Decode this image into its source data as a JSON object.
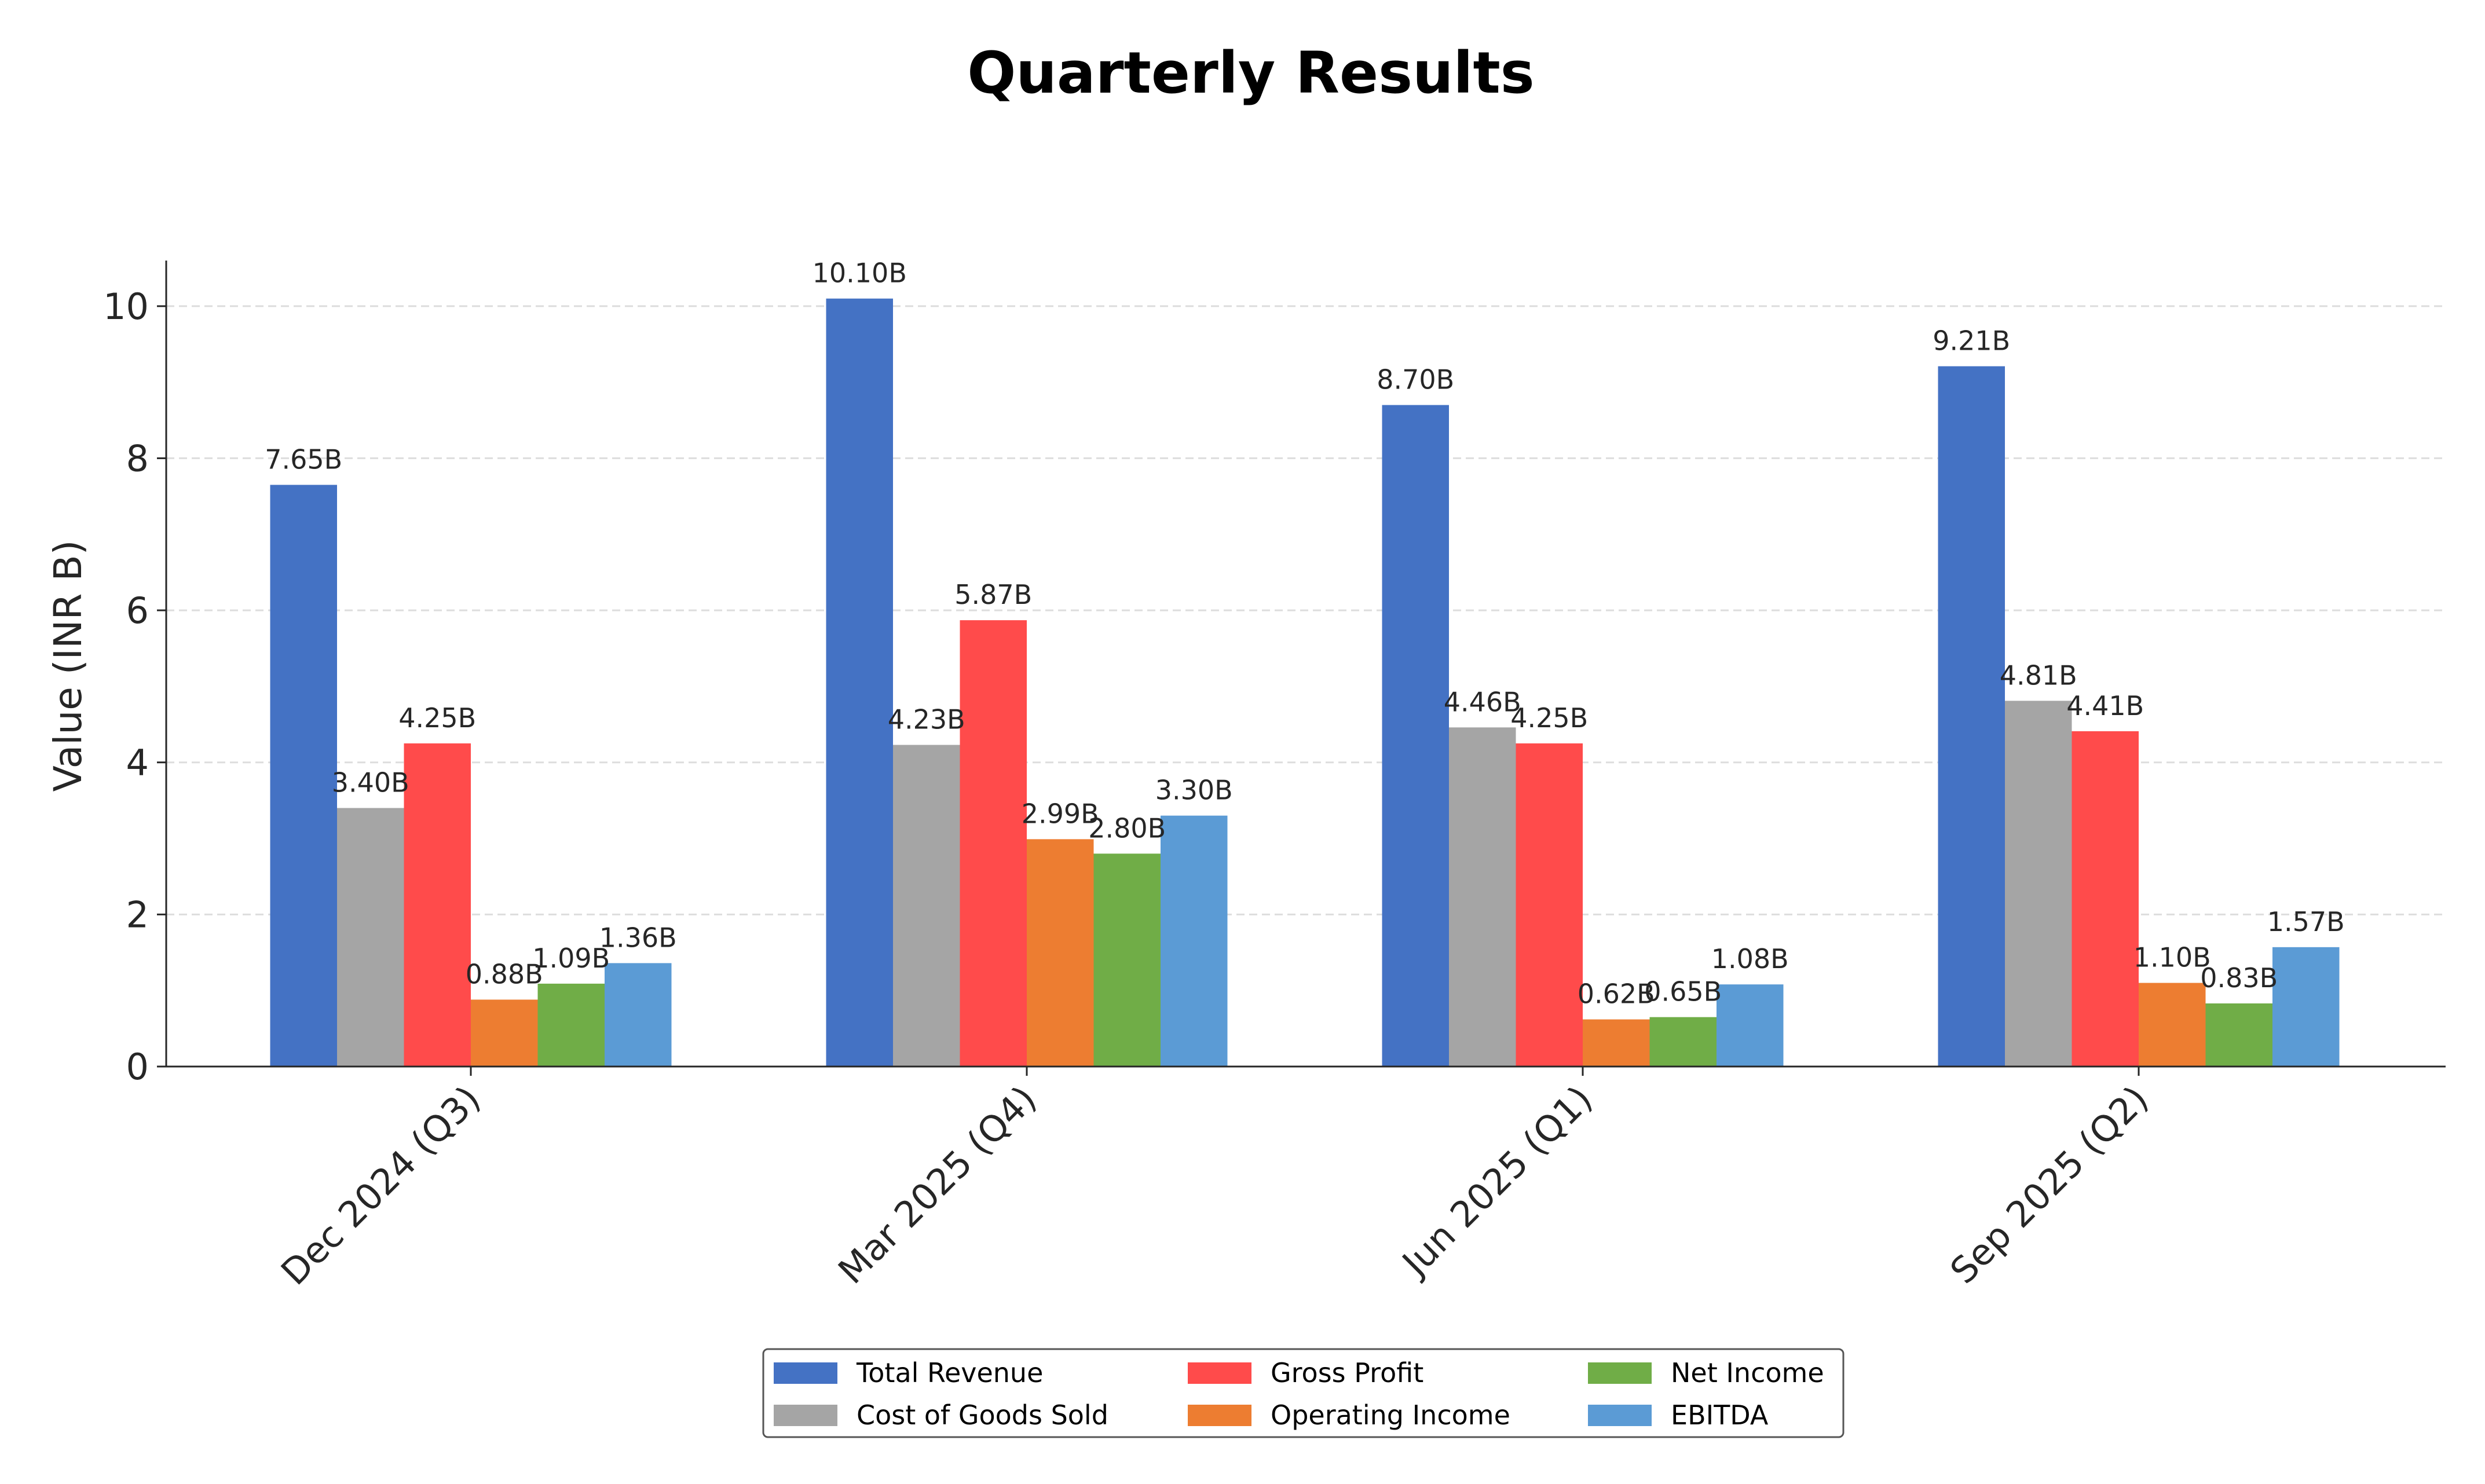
{
  "chart_data": {
    "type": "bar",
    "title": "Quarterly Results",
    "xlabel": "",
    "ylabel": "Value (INR B)",
    "ylim": [
      0,
      10.6
    ],
    "yticks": [
      "0",
      "2",
      "4",
      "6",
      "8",
      "10"
    ],
    "grid": "horizontal dashed",
    "legend_position": "bottom-center",
    "categories": [
      "Dec 2024 (Q3)",
      "Mar 2025 (Q4)",
      "Jun 2025 (Q1)",
      "Sep 2025 (Q2)"
    ],
    "series": [
      {
        "name": "Total Revenue",
        "color": "#4472c4",
        "values": [
          7.65,
          10.1,
          8.7,
          9.21
        ],
        "labels": [
          "7.65B",
          "10.10B",
          "8.70B",
          "9.21B"
        ]
      },
      {
        "name": "Cost of Goods Sold",
        "color": "#a5a5a5",
        "values": [
          3.4,
          4.23,
          4.46,
          4.81
        ],
        "labels": [
          "3.40B",
          "4.23B",
          "4.46B",
          "4.81B"
        ]
      },
      {
        "name": "Gross Profit",
        "color": "#ff4b4b",
        "values": [
          4.25,
          5.87,
          4.25,
          4.41
        ],
        "labels": [
          "4.25B",
          "5.87B",
          "4.25B",
          "4.41B"
        ]
      },
      {
        "name": "Operating Income",
        "color": "#ed7d31",
        "values": [
          0.88,
          2.99,
          0.62,
          1.1
        ],
        "labels": [
          "0.88B",
          "2.99B",
          "0.62B",
          "1.10B"
        ]
      },
      {
        "name": "Net Income",
        "color": "#70ad47",
        "values": [
          1.09,
          2.8,
          0.65,
          0.83
        ],
        "labels": [
          "1.09B",
          "2.80B",
          "0.65B",
          "0.83B"
        ]
      },
      {
        "name": "EBITDA",
        "color": "#5b9bd5",
        "values": [
          1.36,
          3.3,
          1.08,
          1.57
        ],
        "labels": [
          "1.36B",
          "3.30B",
          "1.08B",
          "1.57B"
        ]
      }
    ]
  }
}
